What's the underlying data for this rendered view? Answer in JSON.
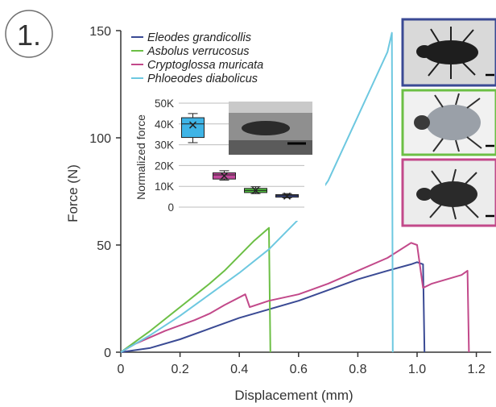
{
  "panel_label": "1.",
  "chart_data": [
    {
      "type": "line",
      "xlabel": "Displacement (mm)",
      "ylabel": "Force (N)",
      "xlim": [
        0,
        1.25
      ],
      "ylim": [
        0,
        150
      ],
      "xticks": [
        0,
        0.2,
        0.4,
        0.6,
        0.8,
        1.0,
        1.2
      ],
      "xtick_labels": [
        "0",
        "0.2",
        "0.4",
        "0.6",
        "0.8",
        "1.0",
        "1.2"
      ],
      "yticks": [
        0,
        50,
        100,
        150
      ],
      "ytick_labels": [
        "0",
        "50",
        "100",
        "150"
      ],
      "grid": false,
      "legend_position": "top-left",
      "series": [
        {
          "name": "Eleodes grandicollis",
          "color": "#3a4a94",
          "points": [
            [
              0,
              0
            ],
            [
              0.1,
              2
            ],
            [
              0.2,
              6
            ],
            [
              0.3,
              11
            ],
            [
              0.4,
              16
            ],
            [
              0.5,
              20
            ],
            [
              0.6,
              24
            ],
            [
              0.7,
              29
            ],
            [
              0.8,
              34
            ],
            [
              0.9,
              38
            ],
            [
              0.98,
              41
            ],
            [
              1.0,
              42
            ],
            [
              1.02,
              41
            ],
            [
              1.025,
              0
            ]
          ]
        },
        {
          "name": "Asbolus verrucosus",
          "color": "#6cbf45",
          "points": [
            [
              0,
              0
            ],
            [
              0.05,
              5
            ],
            [
              0.1,
              10
            ],
            [
              0.2,
              21
            ],
            [
              0.3,
              32
            ],
            [
              0.35,
              38
            ],
            [
              0.4,
              45
            ],
            [
              0.45,
              52
            ],
            [
              0.5,
              58
            ],
            [
              0.505,
              0
            ]
          ]
        },
        {
          "name": "Cryptoglossa muricata",
          "color": "#c2498a",
          "points": [
            [
              0,
              0
            ],
            [
              0.05,
              4
            ],
            [
              0.15,
              10
            ],
            [
              0.25,
              15
            ],
            [
              0.3,
              18
            ],
            [
              0.35,
              22
            ],
            [
              0.42,
              27
            ],
            [
              0.435,
              21
            ],
            [
              0.5,
              24
            ],
            [
              0.6,
              27
            ],
            [
              0.7,
              32
            ],
            [
              0.8,
              38
            ],
            [
              0.9,
              44
            ],
            [
              0.98,
              51
            ],
            [
              1.0,
              50
            ],
            [
              1.02,
              30
            ],
            [
              1.05,
              32
            ],
            [
              1.1,
              34
            ],
            [
              1.15,
              36
            ],
            [
              1.17,
              38
            ],
            [
              1.175,
              0
            ]
          ]
        },
        {
          "name": "Phloeodes diabolicus",
          "color": "#6dc8e0",
          "points": [
            [
              0,
              0
            ],
            [
              0.05,
              4
            ],
            [
              0.1,
              8
            ],
            [
              0.2,
              17
            ],
            [
              0.3,
              27
            ],
            [
              0.4,
              37
            ],
            [
              0.5,
              48
            ],
            [
              0.6,
              62
            ],
            [
              0.65,
              70
            ],
            [
              0.7,
              80
            ],
            [
              0.75,
              95
            ],
            [
              0.8,
              110
            ],
            [
              0.85,
              125
            ],
            [
              0.9,
              140
            ],
            [
              0.915,
              149
            ],
            [
              0.918,
              0
            ]
          ]
        }
      ]
    },
    {
      "type": "box",
      "ylabel": "Normalized force",
      "ylim": [
        0,
        50000
      ],
      "yticks": [
        0,
        10000,
        20000,
        30000,
        40000,
        50000
      ],
      "ytick_labels": [
        "0",
        "10K",
        "20K",
        "30K",
        "40K",
        "50K"
      ],
      "grid": true,
      "boxes": [
        {
          "series": "Phloeodes diabolicus",
          "color": "#3fb4e6",
          "min": 31000,
          "q1": 33500,
          "median": 40000,
          "mean": 39500,
          "q3": 43000,
          "max": 45000
        },
        {
          "series": "Cryptoglossa muricata",
          "color": "#c2499c",
          "min": 13000,
          "q1": 13500,
          "median": 15500,
          "mean": 15000,
          "q3": 16500,
          "max": 17500
        },
        {
          "series": "Asbolus verrucosus",
          "color": "#4fbf3f",
          "min": 6500,
          "q1": 7000,
          "median": 8000,
          "mean": 8000,
          "q3": 9000,
          "max": 9800
        },
        {
          "series": "Eleodes grandicollis",
          "color": "#3e4fa2",
          "min": 4500,
          "q1": 4800,
          "median": 5500,
          "mean": 5300,
          "q3": 6000,
          "max": 6500
        }
      ]
    }
  ],
  "beetle_photos": [
    {
      "series": "Eleodes grandicollis",
      "frame_color": "#3a4a94"
    },
    {
      "series": "Asbolus verrucosus",
      "frame_color": "#6cbf45"
    },
    {
      "series": "Cryptoglossa muricata",
      "frame_color": "#c2498a"
    }
  ]
}
